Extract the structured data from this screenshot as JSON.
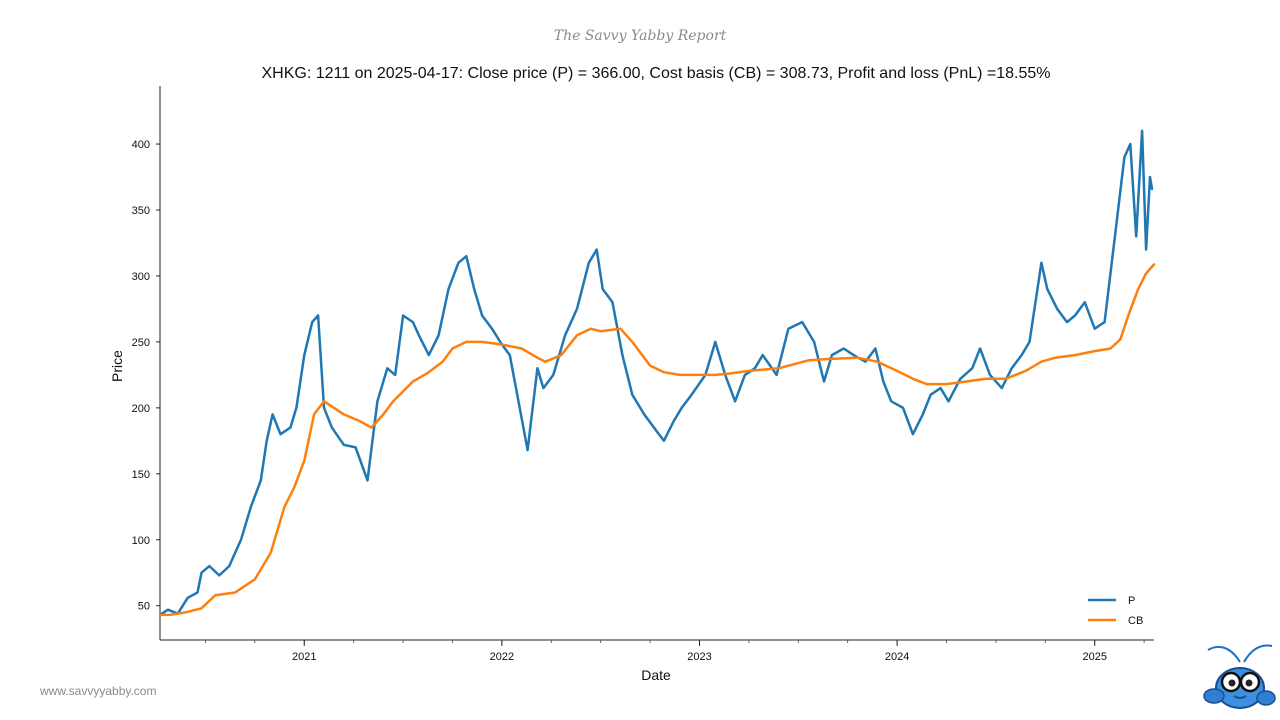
{
  "header": {
    "report_title": "The Savvy Yabby Report"
  },
  "footer": {
    "website": "www.savvyyabby.com"
  },
  "chart_data": {
    "type": "line",
    "title": "XHKG: 1211 on 2025-04-17: Close price (P) = 366.00, Cost basis (CB) = 308.73, Profit and loss (PnL) =18.55%",
    "xlabel": "Date",
    "ylabel": "Price",
    "xlim": [
      2020.27,
      2025.3
    ],
    "ylim": [
      24,
      444
    ],
    "x_ticks": [
      {
        "value": 2021,
        "label": "2021"
      },
      {
        "value": 2022,
        "label": "2022"
      },
      {
        "value": 2023,
        "label": "2023"
      },
      {
        "value": 2024,
        "label": "2024"
      },
      {
        "value": 2025,
        "label": "2025"
      }
    ],
    "y_ticks": [
      {
        "value": 50,
        "label": "50"
      },
      {
        "value": 100,
        "label": "100"
      },
      {
        "value": 150,
        "label": "150"
      },
      {
        "value": 200,
        "label": "200"
      },
      {
        "value": 250,
        "label": "250"
      },
      {
        "value": 300,
        "label": "300"
      },
      {
        "value": 350,
        "label": "350"
      },
      {
        "value": 400,
        "label": "400"
      }
    ],
    "legend": {
      "placement": "bottom-right"
    },
    "series": [
      {
        "name": "P",
        "color": "#1f77b4",
        "x": [
          2020.27,
          2020.31,
          2020.36,
          2020.41,
          2020.46,
          2020.48,
          2020.52,
          2020.57,
          2020.62,
          2020.68,
          2020.73,
          2020.78,
          2020.81,
          2020.84,
          2020.88,
          2020.93,
          2020.96,
          2021.0,
          2021.04,
          2021.07,
          2021.1,
          2021.14,
          2021.2,
          2021.26,
          2021.32,
          2021.37,
          2021.42,
          2021.46,
          2021.5,
          2021.55,
          2021.58,
          2021.63,
          2021.68,
          2021.73,
          2021.78,
          2021.82,
          2021.86,
          2021.9,
          2021.95,
          2022.0,
          2022.04,
          2022.09,
          2022.13,
          2022.18,
          2022.21,
          2022.26,
          2022.32,
          2022.38,
          2022.44,
          2022.48,
          2022.51,
          2022.56,
          2022.61,
          2022.66,
          2022.72,
          2022.77,
          2022.82,
          2022.87,
          2022.91,
          2022.96,
          2023.03,
          2023.08,
          2023.13,
          2023.18,
          2023.23,
          2023.28,
          2023.32,
          2023.39,
          2023.45,
          2023.52,
          2023.58,
          2023.63,
          2023.67,
          2023.73,
          2023.78,
          2023.84,
          2023.89,
          2023.93,
          2023.97,
          2024.03,
          2024.08,
          2024.13,
          2024.17,
          2024.22,
          2024.26,
          2024.32,
          2024.38,
          2024.42,
          2024.47,
          2024.53,
          2024.58,
          2024.63,
          2024.67,
          2024.73,
          2024.76,
          2024.81,
          2024.86,
          2024.9,
          2024.95,
          2025.0,
          2025.05,
          2025.11,
          2025.15,
          2025.18,
          2025.21,
          2025.24,
          2025.26,
          2025.28,
          2025.29
        ],
        "values": [
          43,
          47,
          44,
          56,
          60,
          75,
          80,
          73,
          80,
          100,
          125,
          145,
          175,
          195,
          180,
          185,
          200,
          240,
          265,
          270,
          200,
          185,
          172,
          170,
          145,
          205,
          230,
          225,
          270,
          265,
          255,
          240,
          255,
          290,
          310,
          315,
          290,
          270,
          260,
          248,
          240,
          200,
          168,
          230,
          215,
          225,
          255,
          275,
          310,
          320,
          290,
          280,
          240,
          210,
          195,
          185,
          175,
          190,
          200,
          210,
          225,
          250,
          225,
          205,
          225,
          230,
          240,
          225,
          260,
          265,
          250,
          220,
          240,
          245,
          240,
          235,
          245,
          220,
          205,
          200,
          180,
          195,
          210,
          215,
          205,
          222,
          230,
          245,
          225,
          215,
          230,
          240,
          250,
          310,
          290,
          275,
          265,
          270,
          280,
          260,
          265,
          340,
          390,
          400,
          330,
          410,
          320,
          375,
          366
        ]
      },
      {
        "name": "CB",
        "color": "#ff7f0e",
        "x": [
          2020.27,
          2020.32,
          2020.4,
          2020.48,
          2020.55,
          2020.65,
          2020.75,
          2020.83,
          2020.9,
          2020.95,
          2021.0,
          2021.05,
          2021.1,
          2021.15,
          2021.2,
          2021.28,
          2021.34,
          2021.4,
          2021.45,
          2021.55,
          2021.62,
          2021.7,
          2021.75,
          2021.82,
          2021.9,
          2022.0,
          2022.1,
          2022.18,
          2022.22,
          2022.3,
          2022.38,
          2022.45,
          2022.5,
          2022.6,
          2022.66,
          2022.75,
          2022.82,
          2022.9,
          2023.0,
          2023.08,
          2023.15,
          2023.25,
          2023.4,
          2023.55,
          2023.65,
          2023.8,
          2023.9,
          2024.0,
          2024.08,
          2024.15,
          2024.25,
          2024.35,
          2024.45,
          2024.55,
          2024.65,
          2024.73,
          2024.8,
          2024.9,
          2025.0,
          2025.08,
          2025.13,
          2025.17,
          2025.22,
          2025.26,
          2025.3
        ],
        "values": [
          43,
          43,
          45,
          48,
          58,
          60,
          70,
          90,
          125,
          140,
          160,
          195,
          205,
          200,
          195,
          190,
          185,
          195,
          205,
          220,
          226,
          235,
          245,
          250,
          250,
          248,
          245,
          238,
          235,
          240,
          255,
          260,
          258,
          260,
          250,
          232,
          227,
          225,
          225,
          225,
          226,
          228,
          230,
          236,
          237,
          238,
          235,
          228,
          222,
          218,
          218,
          220,
          222,
          222,
          228,
          235,
          238,
          240,
          243,
          245,
          252,
          270,
          290,
          302,
          308.73
        ]
      }
    ]
  }
}
